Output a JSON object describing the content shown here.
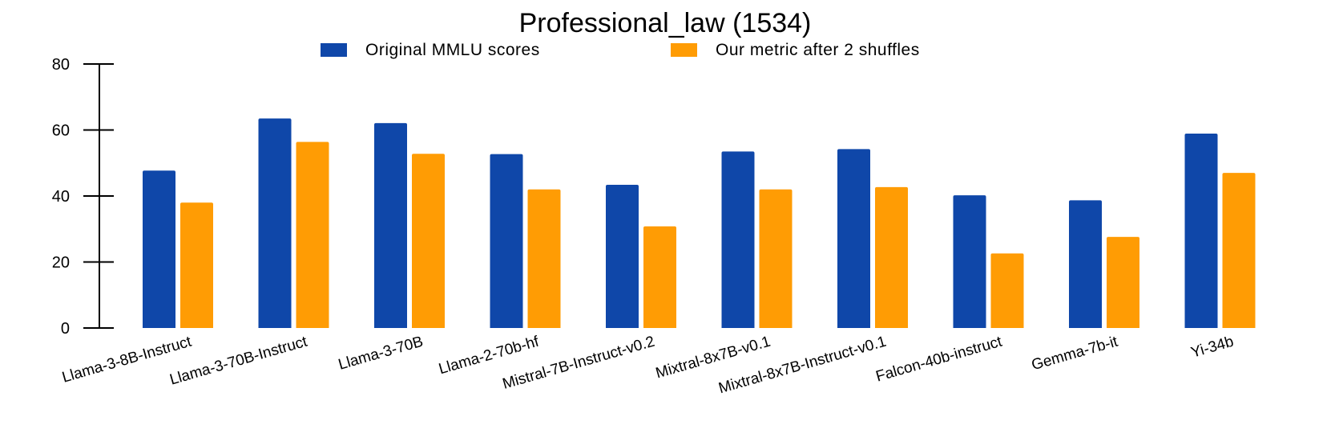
{
  "chart_data": {
    "type": "bar",
    "title": "Professional_law (1534)",
    "xlabel": "",
    "ylabel": "",
    "ylim": [
      0,
      80
    ],
    "yticks": [
      0,
      20,
      40,
      60,
      80
    ],
    "grid": false,
    "legend_position": "top-center",
    "categories": [
      "Llama-3-8B-Instruct",
      "Llama-3-70B-Instruct",
      "Llama-3-70B",
      "Llama-2-70b-hf",
      "Mistral-7B-Instruct-v0.2",
      "Mixtral-8x7B-v0.1",
      "Mixtral-8x7B-Instruct-v0.1",
      "Falcon-40b-instruct",
      "Gemma-7b-it",
      "Yi-34b"
    ],
    "series": [
      {
        "name": "Original MMLU scores",
        "color": "#0f47a9",
        "values": [
          47.7,
          63.5,
          62.1,
          52.7,
          43.4,
          53.5,
          54.2,
          40.2,
          38.7,
          58.9
        ]
      },
      {
        "name": "Our metric after 2 shuffles",
        "color": "#ff9c04",
        "values": [
          38.0,
          56.4,
          52.8,
          42.0,
          30.8,
          42.0,
          42.7,
          22.6,
          27.6,
          47.0
        ]
      }
    ]
  }
}
